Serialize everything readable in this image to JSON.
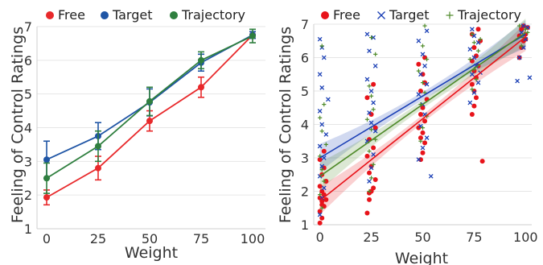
{
  "chart_data": [
    {
      "type": "line",
      "xlabel": "Weight",
      "ylabel": "Feeling of Control Ratings",
      "x": [
        0,
        25,
        50,
        75,
        100
      ],
      "xticks": [
        "0",
        "25",
        "50",
        "75",
        "100"
      ],
      "yticks": [
        "1",
        "2",
        "3",
        "4",
        "5",
        "6",
        "7"
      ],
      "ylim": [
        1,
        7
      ],
      "grid": "horizontal",
      "legend": "top",
      "series": [
        {
          "name": "Free",
          "color": "#e8292b",
          "marker": "circle",
          "values": [
            1.93,
            2.8,
            4.2,
            5.2,
            6.75
          ],
          "error": [
            0.22,
            0.35,
            0.3,
            0.3,
            0.1
          ]
        },
        {
          "name": "Target",
          "color": "#1f55a5",
          "marker": "circle",
          "values": [
            3.05,
            3.75,
            4.75,
            5.93,
            6.75
          ],
          "error": [
            0.55,
            0.4,
            0.4,
            0.25,
            0.1
          ]
        },
        {
          "name": "Trajectory",
          "color": "#2f7f3f",
          "marker": "circle",
          "values": [
            2.5,
            3.45,
            4.78,
            6.0,
            6.72
          ],
          "error": [
            0.45,
            0.45,
            0.42,
            0.25,
            0.2
          ]
        }
      ]
    },
    {
      "type": "scatter",
      "xlabel": "Weight",
      "ylabel": "Feeling of Control Ratings",
      "xticks": [
        "0",
        "25",
        "50",
        "75",
        "100"
      ],
      "yticks": [
        "1",
        "2",
        "3",
        "4",
        "5",
        "6",
        "7"
      ],
      "xlim": [
        -3,
        103
      ],
      "ylim": [
        1,
        7
      ],
      "grid": "horizontal",
      "legend": "top",
      "series": [
        {
          "name": "Free",
          "color": "#e8131a",
          "marker": "circle",
          "fit": {
            "intercept": 1.72,
            "slope": 0.049
          },
          "points": [
            [
              0,
              1.05
            ],
            [
              1,
              1.2
            ],
            [
              0,
              1.4
            ],
            [
              2,
              1.55
            ],
            [
              1,
              1.7
            ],
            [
              0,
              1.8
            ],
            [
              2,
              1.9
            ],
            [
              1,
              2.0
            ],
            [
              0,
              2.15
            ],
            [
              3,
              2.3
            ],
            [
              1,
              2.5
            ],
            [
              2,
              2.7
            ],
            [
              0,
              2.95
            ],
            [
              2,
              3.2
            ],
            [
              1,
              1.6
            ],
            [
              3,
              1.75
            ],
            [
              23,
              1.35
            ],
            [
              24,
              1.75
            ],
            [
              25,
              2.0
            ],
            [
              26,
              2.1
            ],
            [
              27,
              2.35
            ],
            [
              24,
              2.55
            ],
            [
              25,
              2.75
            ],
            [
              23,
              3.05
            ],
            [
              26,
              3.3
            ],
            [
              24,
              3.55
            ],
            [
              27,
              3.9
            ],
            [
              25,
              4.3
            ],
            [
              23,
              4.8
            ],
            [
              26,
              5.2
            ],
            [
              24,
              1.95
            ],
            [
              49,
              2.95
            ],
            [
              50,
              3.15
            ],
            [
              51,
              3.45
            ],
            [
              50,
              3.75
            ],
            [
              48,
              3.9
            ],
            [
              51,
              4.1
            ],
            [
              49,
              4.3
            ],
            [
              50,
              4.5
            ],
            [
              52,
              4.75
            ],
            [
              49,
              5.0
            ],
            [
              51,
              5.25
            ],
            [
              50,
              5.5
            ],
            [
              48,
              5.8
            ],
            [
              51,
              6.0
            ],
            [
              49,
              3.6
            ],
            [
              74,
              4.3
            ],
            [
              75,
              4.55
            ],
            [
              76,
              4.8
            ],
            [
              75,
              5.0
            ],
            [
              74,
              5.2
            ],
            [
              76,
              5.4
            ],
            [
              75,
              5.6
            ],
            [
              77,
              5.75
            ],
            [
              74,
              5.9
            ],
            [
              76,
              6.05
            ],
            [
              75,
              6.3
            ],
            [
              78,
              6.5
            ],
            [
              74,
              6.7
            ],
            [
              79,
              2.9
            ],
            [
              77,
              6.85
            ],
            [
              97,
              6.0
            ],
            [
              98,
              6.3
            ],
            [
              99,
              6.5
            ],
            [
              100,
              6.7
            ],
            [
              98,
              6.85
            ],
            [
              99,
              6.95
            ],
            [
              101,
              6.9
            ],
            [
              97,
              6.65
            ],
            [
              100,
              6.55
            ]
          ]
        },
        {
          "name": "Target",
          "color": "#1a3fb5",
          "marker": "x",
          "fit": {
            "intercept": 3.0,
            "slope": 0.037
          },
          "points": [
            [
              0,
              1.3
            ],
            [
              1,
              1.8
            ],
            [
              2,
              2.1
            ],
            [
              0,
              2.45
            ],
            [
              1,
              2.75
            ],
            [
              2,
              3.0
            ],
            [
              0,
              3.35
            ],
            [
              3,
              3.7
            ],
            [
              1,
              4.0
            ],
            [
              0,
              4.4
            ],
            [
              4,
              4.75
            ],
            [
              1,
              5.1
            ],
            [
              0,
              5.5
            ],
            [
              2,
              6.0
            ],
            [
              0,
              6.55
            ],
            [
              1,
              6.3
            ],
            [
              24,
              2.3
            ],
            [
              25,
              2.7
            ],
            [
              26,
              3.1
            ],
            [
              23,
              3.5
            ],
            [
              27,
              3.8
            ],
            [
              25,
              4.05
            ],
            [
              24,
              4.35
            ],
            [
              26,
              4.65
            ],
            [
              25,
              5.0
            ],
            [
              23,
              5.35
            ],
            [
              27,
              5.75
            ],
            [
              24,
              6.2
            ],
            [
              26,
              6.6
            ],
            [
              23,
              6.7
            ],
            [
              48,
              2.95
            ],
            [
              50,
              3.3
            ],
            [
              52,
              3.6
            ],
            [
              49,
              3.95
            ],
            [
              51,
              4.3
            ],
            [
              50,
              4.6
            ],
            [
              48,
              4.9
            ],
            [
              52,
              5.2
            ],
            [
              49,
              5.5
            ],
            [
              51,
              5.75
            ],
            [
              50,
              6.1
            ],
            [
              48,
              6.5
            ],
            [
              52,
              6.8
            ],
            [
              54,
              2.45
            ],
            [
              73,
              4.65
            ],
            [
              75,
              4.95
            ],
            [
              77,
              5.25
            ],
            [
              74,
              5.5
            ],
            [
              76,
              5.75
            ],
            [
              75,
              6.0
            ],
            [
              73,
              6.25
            ],
            [
              77,
              6.45
            ],
            [
              75,
              6.65
            ],
            [
              74,
              6.85
            ],
            [
              78,
              5.55
            ],
            [
              96,
              5.3
            ],
            [
              97,
              6.0
            ],
            [
              99,
              6.3
            ],
            [
              100,
              6.55
            ],
            [
              98,
              6.75
            ],
            [
              101,
              6.9
            ],
            [
              99,
              6.95
            ],
            [
              102,
              5.4
            ]
          ]
        },
        {
          "name": "Trajectory",
          "color": "#4f8a2a",
          "marker": "plus",
          "fit": {
            "intercept": 2.45,
            "slope": 0.043
          },
          "points": [
            [
              1,
              1.5
            ],
            [
              0,
              1.9
            ],
            [
              2,
              2.3
            ],
            [
              1,
              2.65
            ],
            [
              0,
              3.05
            ],
            [
              3,
              3.4
            ],
            [
              1,
              3.8
            ],
            [
              0,
              4.2
            ],
            [
              2,
              4.6
            ],
            [
              1,
              6.35
            ],
            [
              24,
              2.0
            ],
            [
              25,
              2.4
            ],
            [
              26,
              2.8
            ],
            [
              24,
              3.2
            ],
            [
              27,
              3.55
            ],
            [
              25,
              3.85
            ],
            [
              23,
              4.15
            ],
            [
              26,
              4.45
            ],
            [
              25,
              4.85
            ],
            [
              24,
              5.15
            ],
            [
              27,
              6.1
            ],
            [
              25,
              6.6
            ],
            [
              49,
              3.5
            ],
            [
              50,
              3.9
            ],
            [
              52,
              4.25
            ],
            [
              49,
              4.6
            ],
            [
              51,
              4.95
            ],
            [
              50,
              5.25
            ],
            [
              48,
              5.6
            ],
            [
              52,
              5.95
            ],
            [
              50,
              6.35
            ],
            [
              51,
              6.95
            ],
            [
              74,
              5.05
            ],
            [
              76,
              5.35
            ],
            [
              75,
              5.65
            ],
            [
              73,
              5.95
            ],
            [
              77,
              6.2
            ],
            [
              75,
              6.45
            ],
            [
              74,
              6.7
            ],
            [
              78,
              6.55
            ],
            [
              98,
              6.35
            ],
            [
              99,
              6.6
            ],
            [
              100,
              6.85
            ],
            [
              97,
              6.95
            ],
            [
              101,
              6.75
            ]
          ]
        }
      ]
    }
  ]
}
